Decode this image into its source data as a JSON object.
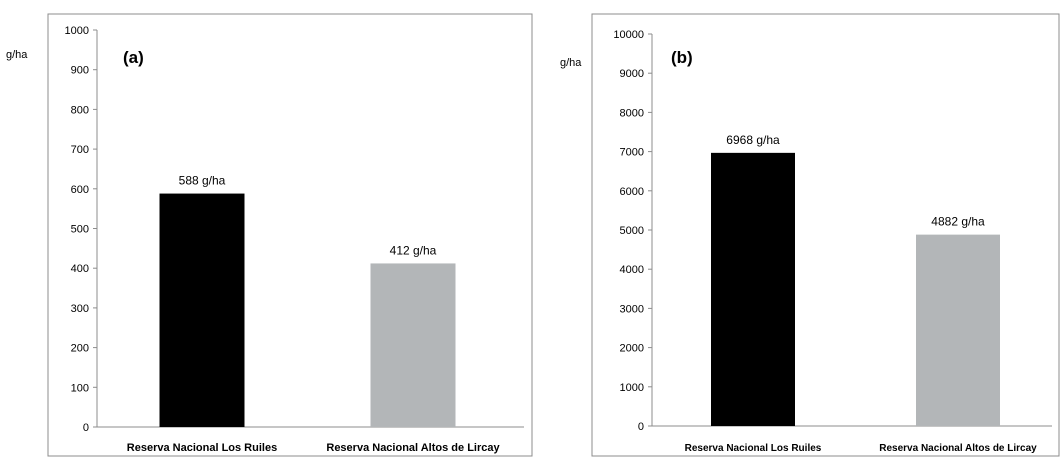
{
  "chart_data": [
    {
      "type": "bar",
      "panel_label": "(a)",
      "unit_label": "g/ha",
      "categories": [
        "Reserva Nacional Los Ruiles",
        "Reserva Nacional Altos de Lircay"
      ],
      "values": [
        588,
        412
      ],
      "data_labels": [
        "588 g/ha",
        "412 g/ha"
      ],
      "colors": [
        "#000000",
        "#b3b6b8"
      ],
      "ylim": [
        0,
        1000
      ],
      "yticks": [
        "0",
        "100",
        "200",
        "300",
        "400",
        "500",
        "600",
        "700",
        "800",
        "900",
        "1000"
      ],
      "grid": false
    },
    {
      "type": "bar",
      "panel_label": "(b)",
      "unit_label": "g/ha",
      "categories": [
        "Reserva Nacional Los Ruiles",
        "Reserva Nacional Altos de Lircay"
      ],
      "values": [
        6968,
        4882
      ],
      "data_labels": [
        "6968 g/ha",
        "4882 g/ha"
      ],
      "colors": [
        "#000000",
        "#b3b6b8"
      ],
      "ylim": [
        0,
        10000
      ],
      "yticks": [
        "0",
        "1000",
        "2000",
        "3000",
        "4000",
        "5000",
        "6000",
        "7000",
        "8000",
        "9000",
        "10000"
      ],
      "grid": false
    }
  ]
}
